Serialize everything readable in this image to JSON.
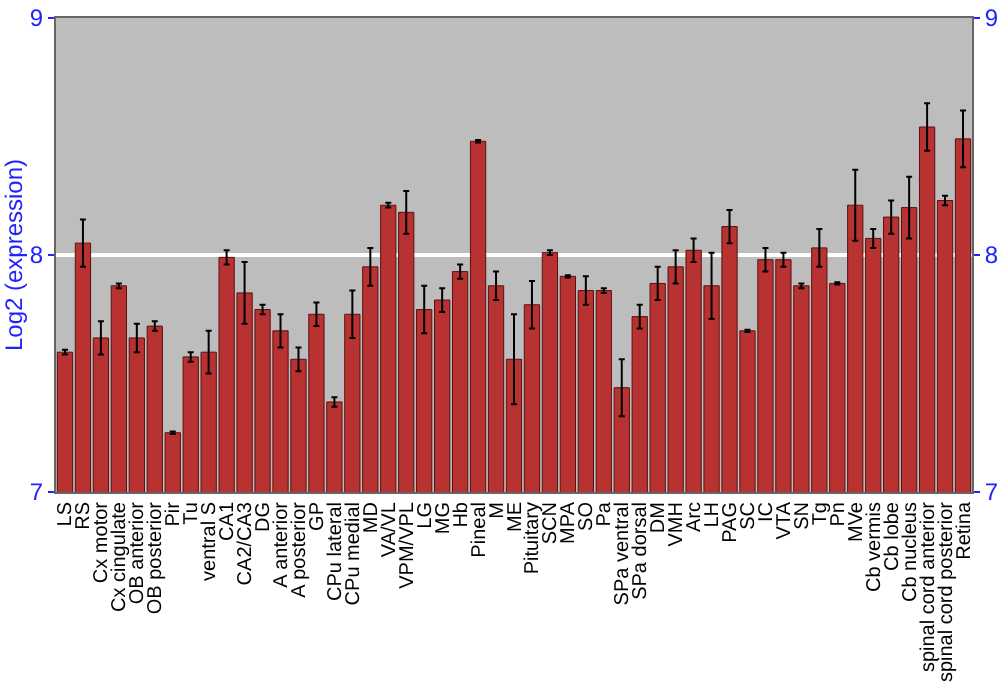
{
  "chart_data": {
    "type": "bar",
    "ylabel": "Log2 (expression)",
    "categories": [
      "LS",
      "RS",
      "Cx motor",
      "Cx cingulate",
      "OB anterior",
      "OB posterior",
      "Pir",
      "Tu",
      "ventral S",
      "CA1",
      "CA2/CA3",
      "DG",
      "A anterior",
      "A posterior",
      "GP",
      "CPu lateral",
      "CPu medial",
      "MD",
      "VA/VL",
      "VPM/VPL",
      "LG",
      "MG",
      "Hb",
      "Pineal",
      "M",
      "ME",
      "Pituitary",
      "SCN",
      "MPA",
      "SO",
      "Pa",
      "SPa ventral",
      "SPa dorsal",
      "DM",
      "VMH",
      "Arc",
      "LH",
      "PAG",
      "SC",
      "IC",
      "VTA",
      "SN",
      "Tg",
      "Pn",
      "MVe",
      "Cb vermis",
      "Cb lobe",
      "Cb nucleus",
      "spinal cord anterior",
      "spinal cord posterior",
      "Retina"
    ],
    "values": [
      7.59,
      8.05,
      7.65,
      7.87,
      7.65,
      7.7,
      7.25,
      7.57,
      7.59,
      7.99,
      7.84,
      7.77,
      7.68,
      7.56,
      7.75,
      7.38,
      7.75,
      7.95,
      8.21,
      8.18,
      7.77,
      7.81,
      7.93,
      8.48,
      7.87,
      7.56,
      7.79,
      8.01,
      7.91,
      7.85,
      7.85,
      7.44,
      7.74,
      7.88,
      7.95,
      8.02,
      7.87,
      8.12,
      7.68,
      7.98,
      7.98,
      7.87,
      8.03,
      7.88,
      8.21,
      8.07,
      8.16,
      8.2,
      8.54,
      8.23,
      8.49
    ],
    "errors": [
      0.01,
      0.1,
      0.07,
      0.01,
      0.06,
      0.02,
      0.005,
      0.02,
      0.09,
      0.03,
      0.13,
      0.02,
      0.07,
      0.05,
      0.05,
      0.02,
      0.1,
      0.08,
      0.01,
      0.09,
      0.1,
      0.05,
      0.03,
      0.005,
      0.06,
      0.19,
      0.1,
      0.01,
      0.005,
      0.06,
      0.01,
      0.12,
      0.05,
      0.07,
      0.07,
      0.05,
      0.14,
      0.07,
      0.005,
      0.05,
      0.03,
      0.01,
      0.08,
      0.005,
      0.15,
      0.04,
      0.07,
      0.13,
      0.1,
      0.02,
      0.12
    ],
    "color": "#b83232",
    "ylim": [
      7,
      9
    ],
    "yticks": [
      7,
      8,
      9
    ],
    "y2lim": [
      7,
      9
    ],
    "y2ticks": [
      7,
      8,
      9
    ],
    "grid": "y"
  }
}
